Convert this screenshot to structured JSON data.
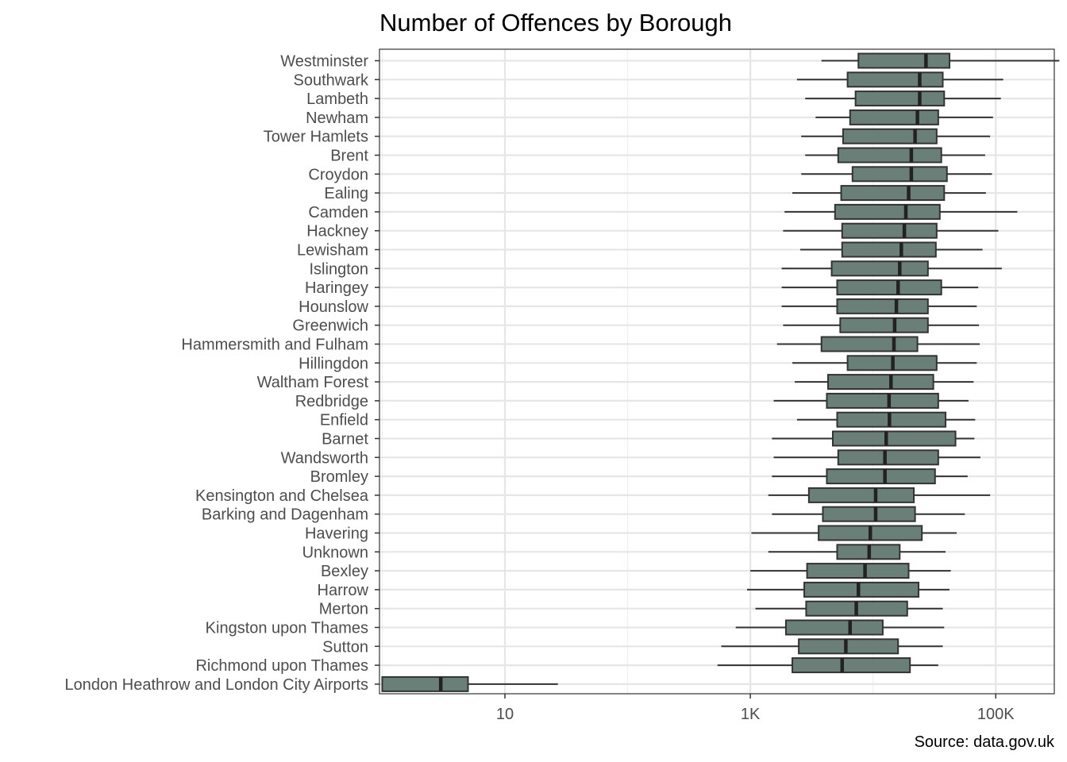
{
  "chart_data": {
    "type": "boxplot",
    "orientation": "horizontal",
    "title": "Number of Offences by Borough",
    "xlabel": "",
    "ylabel": "",
    "caption": "Source: data.gov.uk",
    "x_scale": "log10",
    "xlim": [
      0.95,
      300000
    ],
    "x_ticks": [
      10,
      1000,
      100000
    ],
    "x_tick_labels": [
      "10",
      "1K",
      "100K"
    ],
    "grid": true,
    "box_color": "#6b7f79",
    "line_color": "#333333",
    "categories": [
      "Westminster",
      "Southwark",
      "Lambeth",
      "Newham",
      "Tower Hamlets",
      "Brent",
      "Croydon",
      "Ealing",
      "Camden",
      "Hackney",
      "Lewisham",
      "Islington",
      "Haringey",
      "Hounslow",
      "Greenwich",
      "Hammersmith and Fulham",
      "Hillingdon",
      "Waltham Forest",
      "Redbridge",
      "Enfield",
      "Barnet",
      "Wandsworth",
      "Bromley",
      "Kensington and Chelsea",
      "Barking and Dagenham",
      "Havering",
      "Unknown",
      "Bexley",
      "Harrow",
      "Merton",
      "Kingston upon Thames",
      "Sutton",
      "Richmond upon Thames",
      "London Heathrow and London City Airports"
    ],
    "boxes": [
      {
        "label": "Westminster",
        "min": 3800,
        "q1": 7600,
        "median": 27000,
        "q3": 42000,
        "max": 330000
      },
      {
        "label": "Southwark",
        "min": 2400,
        "q1": 6200,
        "median": 24000,
        "q3": 37000,
        "max": 115000
      },
      {
        "label": "Lambeth",
        "min": 2800,
        "q1": 7200,
        "median": 24000,
        "q3": 38000,
        "max": 110000
      },
      {
        "label": "Newham",
        "min": 3400,
        "q1": 6500,
        "median": 23000,
        "q3": 34000,
        "max": 95000
      },
      {
        "label": "Tower Hamlets",
        "min": 2600,
        "q1": 5700,
        "median": 22000,
        "q3": 33000,
        "max": 90000
      },
      {
        "label": "Brent",
        "min": 2800,
        "q1": 5200,
        "median": 20500,
        "q3": 36000,
        "max": 82000
      },
      {
        "label": "Croydon",
        "min": 2600,
        "q1": 6800,
        "median": 20500,
        "q3": 40000,
        "max": 93000
      },
      {
        "label": "Ealing",
        "min": 2200,
        "q1": 5500,
        "median": 19500,
        "q3": 38000,
        "max": 83000
      },
      {
        "label": "Camden",
        "min": 1900,
        "q1": 4900,
        "median": 18500,
        "q3": 35000,
        "max": 150000
      },
      {
        "label": "Hackney",
        "min": 1850,
        "q1": 5600,
        "median": 18000,
        "q3": 33000,
        "max": 105000
      },
      {
        "label": "Lewisham",
        "min": 2550,
        "q1": 5600,
        "median": 17000,
        "q3": 32500,
        "max": 78000
      },
      {
        "label": "Islington",
        "min": 1800,
        "q1": 4600,
        "median": 16500,
        "q3": 28000,
        "max": 112000
      },
      {
        "label": "Haringey",
        "min": 1800,
        "q1": 5100,
        "median": 16000,
        "q3": 36000,
        "max": 72000
      },
      {
        "label": "Hounslow",
        "min": 1800,
        "q1": 5100,
        "median": 15500,
        "q3": 28000,
        "max": 70000
      },
      {
        "label": "Greenwich",
        "min": 1850,
        "q1": 5400,
        "median": 15000,
        "q3": 28000,
        "max": 73000
      },
      {
        "label": "Hammersmith and Fulham",
        "min": 1650,
        "q1": 3800,
        "median": 14800,
        "q3": 23000,
        "max": 74000
      },
      {
        "label": "Hillingdon",
        "min": 2200,
        "q1": 6200,
        "median": 14500,
        "q3": 33000,
        "max": 70000
      },
      {
        "label": "Waltham Forest",
        "min": 2300,
        "q1": 4300,
        "median": 14000,
        "q3": 31000,
        "max": 66000
      },
      {
        "label": "Redbridge",
        "min": 1550,
        "q1": 4200,
        "median": 13500,
        "q3": 34000,
        "max": 60000
      },
      {
        "label": "Enfield",
        "min": 2400,
        "q1": 5100,
        "median": 13600,
        "q3": 39000,
        "max": 68000
      },
      {
        "label": "Barnet",
        "min": 1500,
        "q1": 4700,
        "median": 12800,
        "q3": 47000,
        "max": 67000
      },
      {
        "label": "Wandsworth",
        "min": 1550,
        "q1": 5200,
        "median": 12500,
        "q3": 34000,
        "max": 75000
      },
      {
        "label": "Bromley",
        "min": 1500,
        "q1": 4200,
        "median": 12500,
        "q3": 32000,
        "max": 59000
      },
      {
        "label": "Kensington and Chelsea",
        "min": 1400,
        "q1": 3000,
        "median": 10500,
        "q3": 21500,
        "max": 90000
      },
      {
        "label": "Barking and Dagenham",
        "min": 1500,
        "q1": 3900,
        "median": 10500,
        "q3": 22000,
        "max": 56000
      },
      {
        "label": "Havering",
        "min": 1020,
        "q1": 3600,
        "median": 9500,
        "q3": 25000,
        "max": 48000
      },
      {
        "label": "Unknown",
        "min": 1400,
        "q1": 5100,
        "median": 9300,
        "q3": 16500,
        "max": 39000
      },
      {
        "label": "Bexley",
        "min": 1000,
        "q1": 2900,
        "median": 8600,
        "q3": 19500,
        "max": 43000
      },
      {
        "label": "Harrow",
        "min": 940,
        "q1": 2750,
        "median": 7600,
        "q3": 23500,
        "max": 42000
      },
      {
        "label": "Merton",
        "min": 1100,
        "q1": 2850,
        "median": 7300,
        "q3": 19000,
        "max": 37000
      },
      {
        "label": "Kingston upon Thames",
        "min": 760,
        "q1": 1950,
        "median": 6500,
        "q3": 12000,
        "max": 38000
      },
      {
        "label": "Sutton",
        "min": 580,
        "q1": 2480,
        "median": 6000,
        "q3": 16000,
        "max": 37000
      },
      {
        "label": "Richmond upon Thames",
        "min": 540,
        "q1": 2200,
        "median": 5600,
        "q3": 20000,
        "max": 34000
      },
      {
        "label": "London Heathrow and London City Airports",
        "min": 1.0,
        "q1": 1.0,
        "median": 3.0,
        "q3": 5.0,
        "max": 27
      }
    ]
  }
}
